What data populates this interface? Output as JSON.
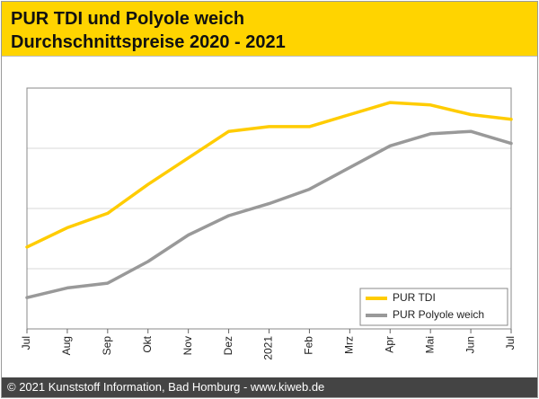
{
  "header": {
    "title_line1": "PUR TDI und Polyole weich",
    "title_line2": "Durchschnittspreise 2020 - 2021"
  },
  "footer": {
    "text": "© 2021 Kunststoff Information, Bad Homburg - www.kiweb.de"
  },
  "colors": {
    "header_bg": "#ffd400",
    "tdi_line": "#ffcc00",
    "polyole_line": "#999999",
    "grid": "#d9d9d9",
    "footer_bg": "#444444"
  },
  "chart_data": {
    "type": "line",
    "title": "PUR TDI und Polyole weich Durchschnittspreise 2020 - 2021",
    "xlabel": "",
    "ylabel": "",
    "categories": [
      "Jul",
      "Aug",
      "Sep",
      "Okt",
      "Nov",
      "Dez",
      "2021",
      "Feb",
      "Mrz",
      "Apr",
      "Mai",
      "Jun",
      "Jul"
    ],
    "ylim": [
      0,
      100
    ],
    "grid": true,
    "legend_position": "bottom-right",
    "series": [
      {
        "name": "PUR TDI",
        "color": "#ffcc00",
        "values": [
          34,
          42,
          48,
          60,
          71,
          82,
          84,
          84,
          89,
          94,
          93,
          89,
          87
        ]
      },
      {
        "name": "PUR Polyole weich",
        "color": "#999999",
        "values": [
          13,
          17,
          19,
          28,
          39,
          47,
          52,
          58,
          67,
          76,
          81,
          82,
          77
        ]
      }
    ]
  }
}
